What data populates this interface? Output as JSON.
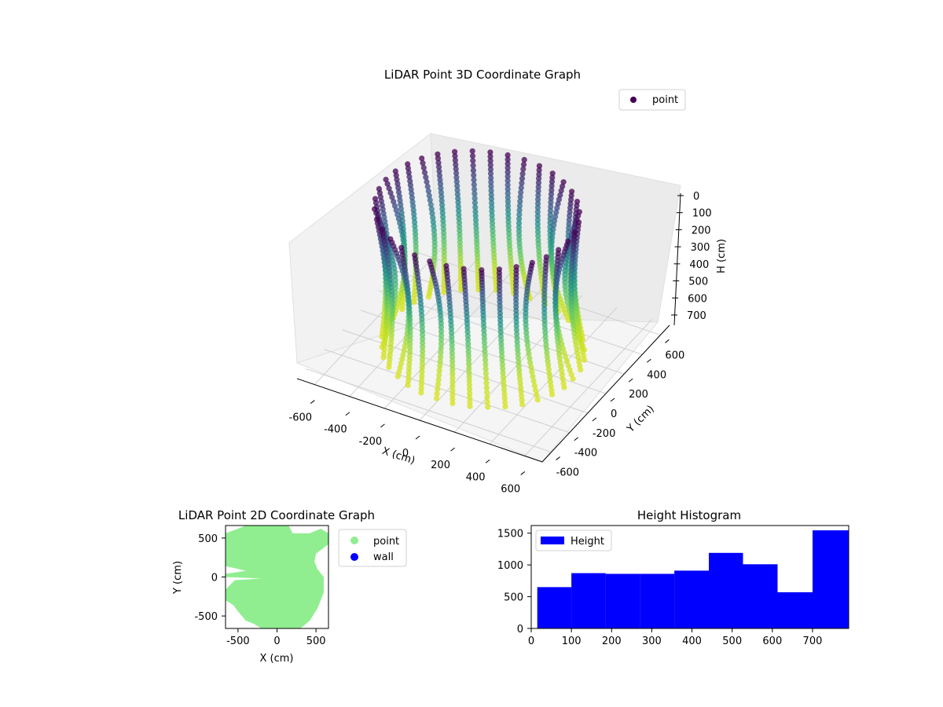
{
  "chart_data": [
    {
      "type": "scatter3d",
      "title": "LiDAR Point 3D Coordinate Graph",
      "xlabel": "X (cm)",
      "ylabel": "Y (cm)",
      "zlabel": "H (cm)",
      "xlim": [
        -700,
        700
      ],
      "ylim": [
        -700,
        700
      ],
      "zlim": [
        0,
        790
      ],
      "z_inverted": true,
      "x_ticks": [
        "-600",
        "-400",
        "-200",
        "0",
        "200",
        "400",
        "600"
      ],
      "y_ticks": [
        "-600",
        "-400",
        "-200",
        "0",
        "200",
        "400",
        "600"
      ],
      "z_ticks": [
        "0",
        "100",
        "200",
        "300",
        "400",
        "500",
        "600",
        "700"
      ],
      "legend": {
        "entries": [
          "point"
        ],
        "position": "upper-right"
      },
      "colormap": "viridis",
      "colormap_stops": [
        "#440154",
        "#3b528b",
        "#21918c",
        "#5ec962",
        "#bddf26",
        "#d8e219"
      ],
      "grid": true,
      "series": [
        {
          "name": "point",
          "color": "#440154",
          "description_of_pattern": "vertical scan columns around a ring of radius ~500",
          "columns": [
            {
              "angle_deg": 0,
              "radius": 520
            },
            {
              "angle_deg": 10,
              "radius": 520
            },
            {
              "angle_deg": 20,
              "radius": 520
            },
            {
              "angle_deg": 30,
              "radius": 520
            },
            {
              "angle_deg": 40,
              "radius": 520
            },
            {
              "angle_deg": 50,
              "radius": 520
            },
            {
              "angle_deg": 60,
              "radius": 520
            },
            {
              "angle_deg": 70,
              "radius": 520
            },
            {
              "angle_deg": 80,
              "radius": 520
            },
            {
              "angle_deg": 90,
              "radius": 520
            },
            {
              "angle_deg": 100,
              "radius": 520
            },
            {
              "angle_deg": 110,
              "radius": 520
            },
            {
              "angle_deg": 120,
              "radius": 520
            },
            {
              "angle_deg": 130,
              "radius": 520
            },
            {
              "angle_deg": 140,
              "radius": 520
            },
            {
              "angle_deg": 150,
              "radius": 520
            },
            {
              "angle_deg": 160,
              "radius": 520
            },
            {
              "angle_deg": 170,
              "radius": 520
            },
            {
              "angle_deg": 180,
              "radius": 520
            },
            {
              "angle_deg": 190,
              "radius": 520
            },
            {
              "angle_deg": 200,
              "radius": 520
            },
            {
              "angle_deg": 210,
              "radius": 520
            },
            {
              "angle_deg": 220,
              "radius": 520
            },
            {
              "angle_deg": 230,
              "radius": 520
            },
            {
              "angle_deg": 240,
              "radius": 520
            },
            {
              "angle_deg": 250,
              "radius": 520
            },
            {
              "angle_deg": 260,
              "radius": 520
            },
            {
              "angle_deg": 270,
              "radius": 520
            },
            {
              "angle_deg": 280,
              "radius": 520
            },
            {
              "angle_deg": 290,
              "radius": 520
            },
            {
              "angle_deg": 300,
              "radius": 520
            },
            {
              "angle_deg": 310,
              "radius": 520
            },
            {
              "angle_deg": 320,
              "radius": 520
            },
            {
              "angle_deg": 330,
              "radius": 520
            },
            {
              "angle_deg": 340,
              "radius": 520
            },
            {
              "angle_deg": 350,
              "radius": 520
            }
          ],
          "h_range": [
            0,
            790
          ]
        }
      ]
    },
    {
      "type": "scatter",
      "title": "LiDAR Point 2D Coordinate Graph",
      "xlabel": "X (cm)",
      "ylabel": "Y (cm)",
      "xlim": [
        -660,
        660
      ],
      "ylim": [
        -660,
        660
      ],
      "x_ticks": [
        "-500",
        "0",
        "500"
      ],
      "y_ticks": [
        "500",
        "0",
        "-500"
      ],
      "legend": {
        "entries": [
          {
            "name": "point",
            "color": "#90ee90"
          },
          {
            "name": "wall",
            "color": "#0000ff"
          }
        ],
        "position": "outside-right"
      },
      "series": [
        {
          "name": "point",
          "color": "#90ee90",
          "region_polygon": [
            [
              -400,
              660
            ],
            [
              -250,
              660
            ],
            [
              150,
              660
            ],
            [
              200,
              560
            ],
            [
              420,
              560
            ],
            [
              560,
              620
            ],
            [
              660,
              560
            ],
            [
              660,
              420
            ],
            [
              500,
              300
            ],
            [
              480,
              200
            ],
            [
              520,
              100
            ],
            [
              600,
              0
            ],
            [
              600,
              -200
            ],
            [
              520,
              -400
            ],
            [
              420,
              -560
            ],
            [
              300,
              -660
            ],
            [
              -200,
              -660
            ],
            [
              -300,
              -600
            ],
            [
              -400,
              -560
            ],
            [
              -500,
              -440
            ],
            [
              -560,
              -360
            ],
            [
              -660,
              -300
            ],
            [
              -660,
              -160
            ],
            [
              -540,
              -40
            ],
            [
              -200,
              -20
            ],
            [
              -660,
              0
            ],
            [
              -660,
              40
            ],
            [
              -400,
              80
            ],
            [
              -660,
              140
            ],
            [
              -660,
              560
            ],
            [
              -500,
              620
            ]
          ]
        },
        {
          "name": "wall",
          "color": "#0000ff",
          "points": []
        }
      ]
    },
    {
      "type": "bar",
      "title": "Height Histogram",
      "xlabel": "",
      "ylabel": "",
      "xlim": [
        0,
        790
      ],
      "ylim": [
        0,
        1620
      ],
      "x_ticks": [
        "0",
        "100",
        "200",
        "300",
        "400",
        "500",
        "600",
        "700"
      ],
      "y_ticks": [
        "0",
        "500",
        "1000",
        "1500"
      ],
      "legend": {
        "entries": [
          "Height"
        ],
        "position": "upper-left"
      },
      "series": [
        {
          "name": "Height",
          "color": "#0000ff",
          "bins": [
            {
              "start": 15,
              "end": 100,
              "value": 650
            },
            {
              "start": 100,
              "end": 185,
              "value": 870
            },
            {
              "start": 185,
              "end": 270,
              "value": 860
            },
            {
              "start": 270,
              "end": 356,
              "value": 860
            },
            {
              "start": 356,
              "end": 442,
              "value": 910
            },
            {
              "start": 442,
              "end": 527,
              "value": 1190
            },
            {
              "start": 527,
              "end": 613,
              "value": 1010
            },
            {
              "start": 613,
              "end": 700,
              "value": 570
            },
            {
              "start": 700,
              "end": 790,
              "value": 1545
            }
          ]
        }
      ]
    }
  ]
}
